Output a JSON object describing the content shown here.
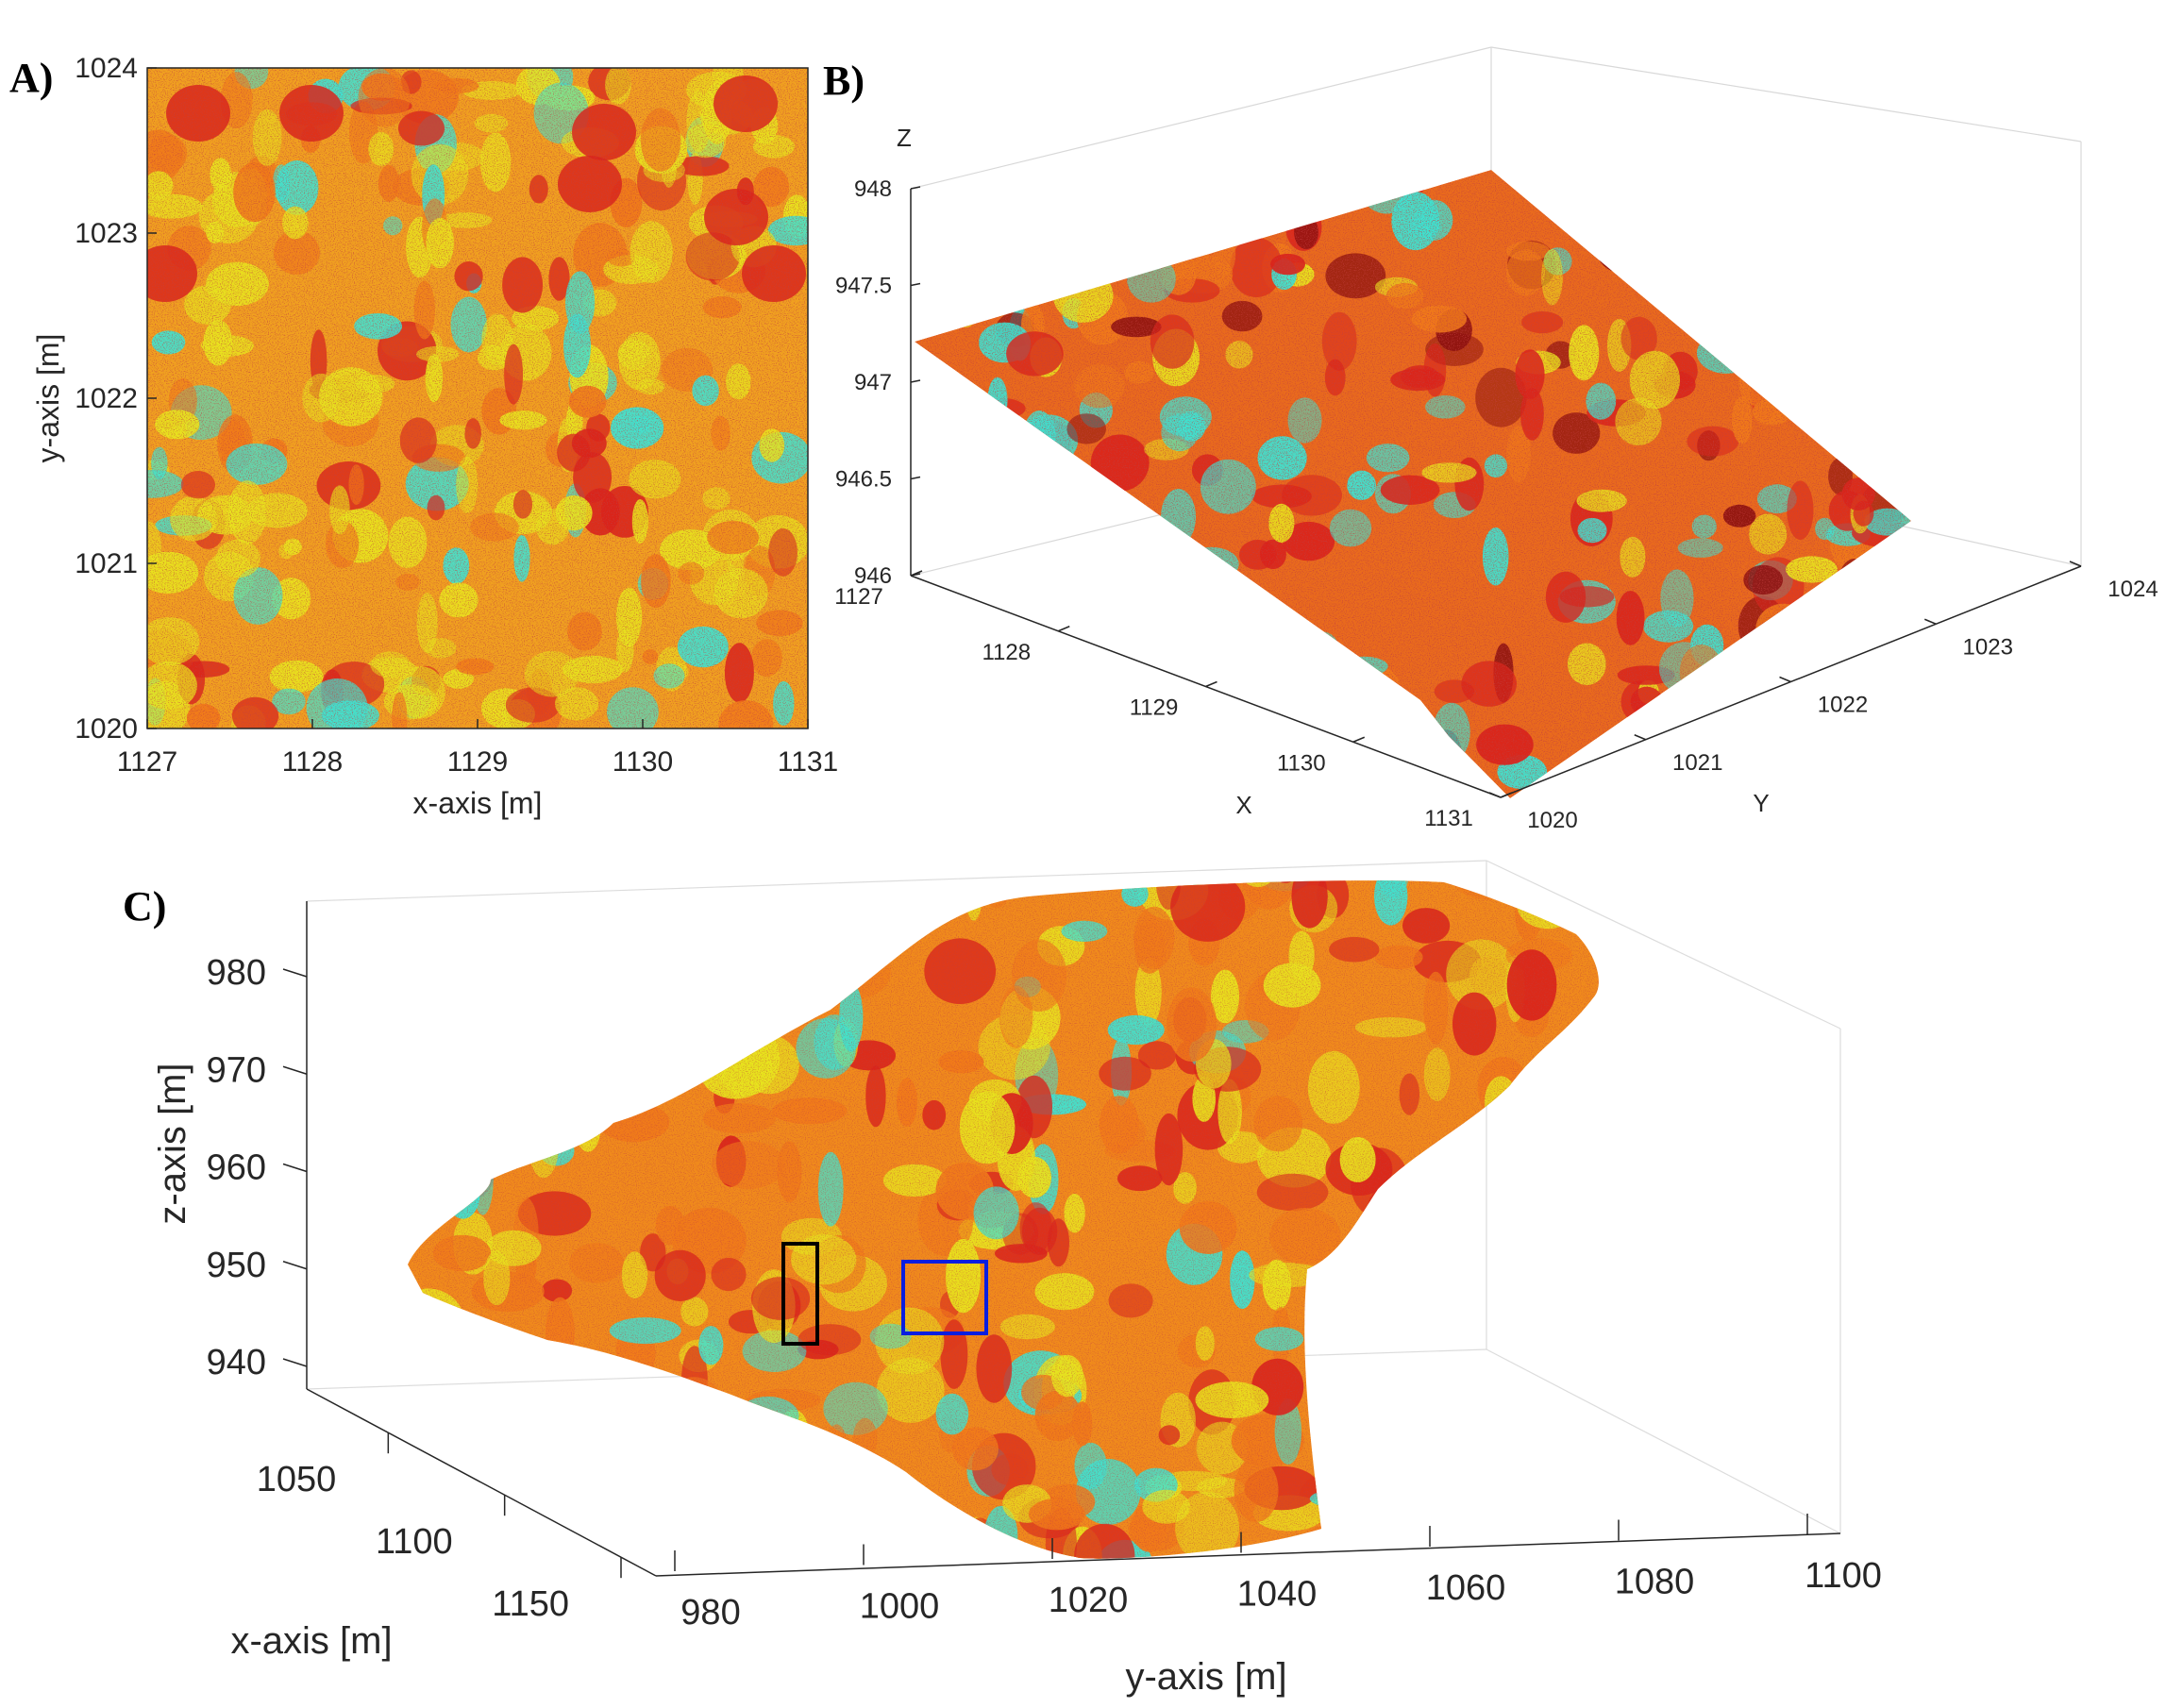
{
  "panels": {
    "a": {
      "label": "A)"
    },
    "b": {
      "label": "B)"
    },
    "c": {
      "label": "C)"
    }
  },
  "colors": {
    "red": "#d9241b",
    "orange": "#f07a1a",
    "yellow": "#e8e21e",
    "cyan": "#3fe1d0",
    "dark_red": "#8b0f0f",
    "box_black": "#000000",
    "box_blue": "#0a1ee0"
  },
  "chart_data": [
    {
      "panel": "A)",
      "type": "heatmap",
      "view": "top-down point cloud",
      "xlabel": "x-axis [m]",
      "ylabel": "y-axis [m]",
      "xlim": [
        1127,
        1131
      ],
      "ylim": [
        1020,
        1024
      ],
      "xticks": [
        "1127",
        "1128",
        "1129",
        "1130",
        "1131"
      ],
      "yticks": [
        "1020",
        "1021",
        "1022",
        "1023",
        "1024"
      ],
      "grid": false
    },
    {
      "panel": "B)",
      "type": "scatter",
      "view": "3D point cloud",
      "xlabel": "X",
      "ylabel": "Y",
      "zlabel": "Z",
      "xlim": [
        1127,
        1131
      ],
      "ylim": [
        1020,
        1024
      ],
      "zlim": [
        946,
        948
      ],
      "xticks": [
        "1127",
        "1128",
        "1129",
        "1130",
        "1131"
      ],
      "yticks": [
        "1020",
        "1021",
        "1022",
        "1023",
        "1024"
      ],
      "zticks": [
        "946",
        "946.5",
        "947",
        "947.5",
        "948"
      ],
      "grid": true
    },
    {
      "panel": "C)",
      "type": "scatter",
      "view": "3D point cloud",
      "xlabel": "x-axis [m]",
      "ylabel": "y-axis [m]",
      "zlabel": "z-axis [m]",
      "xticks": [
        "1050",
        "1100",
        "1150"
      ],
      "yticks": [
        "980",
        "1000",
        "1020",
        "1040",
        "1060",
        "1080",
        "1100"
      ],
      "zticks": [
        "940",
        "950",
        "960",
        "970",
        "980"
      ],
      "grid": true,
      "annotations": [
        "black rectangle",
        "blue rectangle"
      ]
    }
  ]
}
